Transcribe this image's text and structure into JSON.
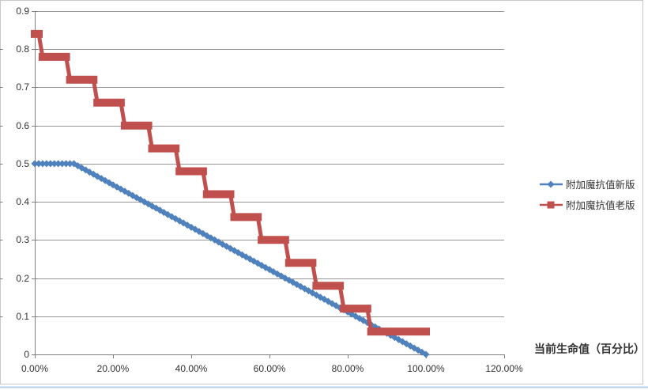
{
  "colors": {
    "background": "#FFFFFF",
    "border": "#C8C8C8",
    "grid": "#969696",
    "axis": "#808080",
    "text": "#333333",
    "sheet_line": "#B8CFE8",
    "series_new": "#4F81BD",
    "series_old": "#C0504D"
  },
  "chart_data": {
    "type": "line",
    "xlabel": "当前生命值（百分比）",
    "ylabel": "",
    "x_tick_labels": [
      "0.00%",
      "20.00%",
      "40.00%",
      "60.00%",
      "80.00%",
      "100.00%",
      "120.00%"
    ],
    "x_tick_values": [
      0,
      20,
      40,
      60,
      80,
      100,
      120
    ],
    "y_tick_labels": [
      "0",
      "0.1",
      "0.2",
      "0.3",
      "0.4",
      "0.5",
      "0.6",
      "0.7",
      "0.8",
      "0.9"
    ],
    "y_tick_values": [
      0,
      0.1,
      0.2,
      0.3,
      0.4,
      0.5,
      0.6,
      0.7,
      0.8,
      0.9
    ],
    "xlim_pct": [
      0,
      120
    ],
    "ylim": [
      0,
      0.9
    ],
    "grid": "horizontal",
    "legend_position": "right",
    "marker_interval_pct": 1,
    "series": [
      {
        "name": "附加魔抗值新版",
        "color": "#4F81BD",
        "marker": "diamond",
        "marker_size": 9,
        "line_width": 3,
        "keypoints": [
          [
            0,
            0.5
          ],
          [
            10,
            0.5
          ],
          [
            100,
            0
          ]
        ],
        "rule": "value = min(0.5, (100 - health_pct) / 180), one point per 1% health from 0% to 100%"
      },
      {
        "name": "附加魔抗值老版",
        "color": "#C0504D",
        "marker": "square",
        "marker_size": 10,
        "line_width": 5,
        "steps": [
          {
            "value": 0.84,
            "from": 0,
            "to": 1
          },
          {
            "value": 0.78,
            "from": 2,
            "to": 8
          },
          {
            "value": 0.72,
            "from": 9,
            "to": 15
          },
          {
            "value": 0.66,
            "from": 16,
            "to": 22
          },
          {
            "value": 0.6,
            "from": 23,
            "to": 29
          },
          {
            "value": 0.54,
            "from": 30,
            "to": 36
          },
          {
            "value": 0.48,
            "from": 37,
            "to": 43
          },
          {
            "value": 0.42,
            "from": 44,
            "to": 50
          },
          {
            "value": 0.36,
            "from": 51,
            "to": 57
          },
          {
            "value": 0.3,
            "from": 58,
            "to": 64
          },
          {
            "value": 0.24,
            "from": 65,
            "to": 71
          },
          {
            "value": 0.18,
            "from": 72,
            "to": 78
          },
          {
            "value": 0.12,
            "from": 79,
            "to": 85
          },
          {
            "value": 0.06,
            "from": 86,
            "to": 100
          }
        ],
        "rule": "stepped value, one point per 1% health from 0% to 100%"
      }
    ]
  }
}
